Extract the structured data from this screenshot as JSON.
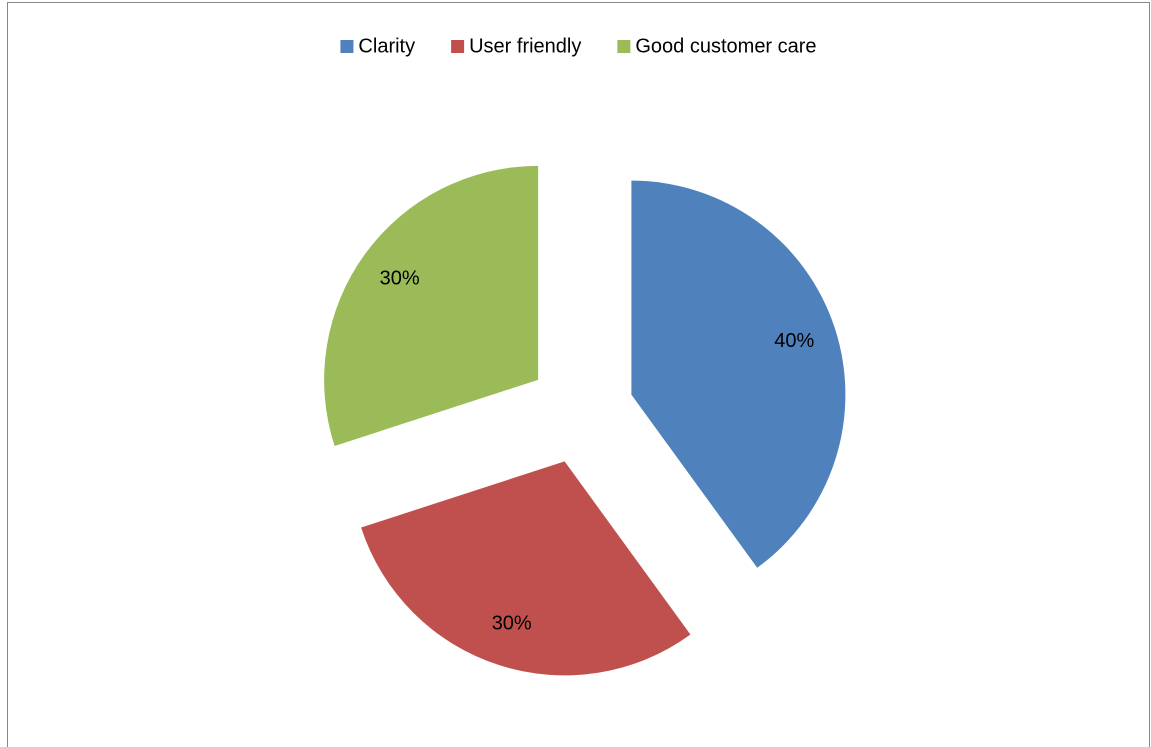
{
  "chart_data": {
    "type": "pie",
    "categories": [
      "Clarity",
      "User friendly",
      "Good customer care"
    ],
    "values": [
      40,
      30,
      30
    ],
    "value_labels": [
      "40%",
      "30%",
      "30%"
    ],
    "colors": [
      "#4f81bd",
      "#c0504d",
      "#9bbb59"
    ],
    "exploded": true,
    "legend": "top"
  }
}
